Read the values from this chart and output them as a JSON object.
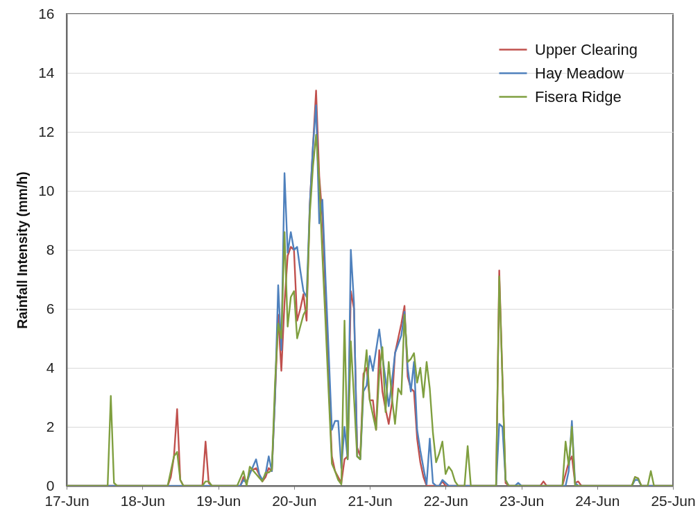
{
  "chart_data": {
    "type": "line",
    "ylabel": "Rainfall Intensity (mm/h)",
    "xlim": [
      "--06-17",
      "--06-25"
    ],
    "xticks": [
      {
        "value": "--06-17",
        "label": "17-Jun"
      },
      {
        "value": "--06-18",
        "label": "18-Jun"
      },
      {
        "value": "--06-19",
        "label": "19-Jun"
      },
      {
        "value": "--06-20",
        "label": "20-Jun"
      },
      {
        "value": "--06-21",
        "label": "21-Jun"
      },
      {
        "value": "--06-22",
        "label": "22-Jun"
      },
      {
        "value": "--06-23",
        "label": "23-Jun"
      },
      {
        "value": "--06-24",
        "label": "24-Jun"
      },
      {
        "value": "--06-25",
        "label": "25-Jun"
      }
    ],
    "ylim": [
      0,
      16
    ],
    "yticks": [
      0,
      2,
      4,
      6,
      8,
      10,
      12,
      14,
      16
    ],
    "grid": "y",
    "legend": "top right",
    "line_style": "solid",
    "series": [
      {
        "name": "Upper Clearing",
        "color": "#c0504d",
        "x": [
          "--06-17T00:00",
          "--06-18T08:00",
          "--06-18T09:00",
          "--06-18T10:00",
          "--06-18T11:00",
          "--06-18T12:00",
          "--06-18T13:00",
          "--06-18T19:00",
          "--06-18T20:00",
          "--06-18T21:00",
          "--06-18T22:00",
          "--06-19T07:00",
          "--06-19T08:00",
          "--06-19T09:00",
          "--06-19T10:00",
          "--06-19T12:00",
          "--06-19T14:00",
          "--06-19T15:00",
          "--06-19T16:00",
          "--06-19T17:00",
          "--06-19T18:00",
          "--06-19T19:00",
          "--06-19T20:00",
          "--06-19T21:00",
          "--06-19T22:00",
          "--06-19T23:00",
          "--06-20T00:00",
          "--06-20T01:00",
          "--06-20T02:00",
          "--06-20T03:00",
          "--06-20T04:00",
          "--06-20T05:00",
          "--06-20T06:00",
          "--06-20T07:00",
          "--06-20T08:00",
          "--06-20T09:00",
          "--06-20T10:00",
          "--06-20T11:00",
          "--06-20T12:00",
          "--06-20T13:00",
          "--06-20T14:00",
          "--06-20T15:00",
          "--06-20T16:00",
          "--06-20T17:00",
          "--06-20T18:00",
          "--06-20T19:00",
          "--06-20T20:00",
          "--06-20T21:00",
          "--06-20T22:00",
          "--06-20T23:00",
          "--06-21T00:00",
          "--06-21T01:00",
          "--06-21T02:00",
          "--06-21T03:00",
          "--06-21T04:00",
          "--06-21T05:00",
          "--06-21T06:00",
          "--06-21T07:00",
          "--06-21T08:00",
          "--06-21T09:00",
          "--06-21T10:00",
          "--06-21T11:00",
          "--06-21T12:00",
          "--06-21T13:00",
          "--06-21T14:00",
          "--06-21T15:00",
          "--06-21T16:00",
          "--06-21T17:00",
          "--06-21T18:00",
          "--06-21T22:00",
          "--06-21T23:00",
          "--06-22T00:00",
          "--06-22T16:00",
          "--06-22T17:00",
          "--06-22T19:00",
          "--06-22T20:00",
          "--06-23T06:00",
          "--06-23T07:00",
          "--06-23T08:00",
          "--06-23T13:00",
          "--06-23T15:00",
          "--06-23T16:00",
          "--06-23T17:00",
          "--06-23T18:00",
          "--06-23T19:00",
          "--06-24T11:00",
          "--06-24T12:00",
          "--06-24T13:00",
          "--06-24T14:00",
          "--06-25T00:00"
        ],
        "values": [
          0,
          0,
          0.3,
          1.0,
          2.6,
          0.2,
          0,
          0,
          1.5,
          0.1,
          0,
          0,
          0.3,
          0.1,
          0.5,
          0.6,
          0.15,
          0.3,
          0.6,
          0.5,
          3.0,
          5.8,
          3.9,
          6.2,
          7.8,
          8.1,
          8.0,
          5.6,
          6.0,
          6.5,
          5.6,
          9.5,
          11.5,
          13.4,
          10.5,
          9.1,
          6.5,
          3.5,
          1.0,
          0.5,
          0.3,
          0.1,
          0.9,
          1.0,
          6.6,
          6.0,
          1.3,
          1.0,
          3.8,
          4.0,
          2.9,
          2.9,
          1.9,
          4.6,
          3.2,
          2.6,
          2.1,
          2.8,
          4.5,
          5.0,
          5.5,
          6.1,
          3.7,
          3.3,
          3.2,
          1.6,
          0.8,
          0.3,
          0,
          0,
          0.15,
          0,
          0,
          7.3,
          0.1,
          0,
          0,
          0.15,
          0,
          0,
          0.8,
          1.0,
          0.1,
          0.15,
          0,
          0,
          0.3,
          0.25,
          0,
          0
        ]
      },
      {
        "name": "Hay Meadow",
        "color": "#4f81bd",
        "x": [
          "--06-17T00:00",
          "--06-19T07:00",
          "--06-19T08:00",
          "--06-19T09:00",
          "--06-19T10:00",
          "--06-19T12:00",
          "--06-19T13:00",
          "--06-19T14:00",
          "--06-19T15:00",
          "--06-19T16:00",
          "--06-19T17:00",
          "--06-19T18:00",
          "--06-19T19:00",
          "--06-19T20:00",
          "--06-19T21:00",
          "--06-19T22:00",
          "--06-19T23:00",
          "--06-20T00:00",
          "--06-20T01:00",
          "--06-20T02:00",
          "--06-20T03:00",
          "--06-20T04:00",
          "--06-20T05:00",
          "--06-20T06:00",
          "--06-20T07:00",
          "--06-20T08:00",
          "--06-20T09:00",
          "--06-20T10:00",
          "--06-20T11:00",
          "--06-20T12:00",
          "--06-20T13:00",
          "--06-20T14:00",
          "--06-20T15:00",
          "--06-20T16:00",
          "--06-20T17:00",
          "--06-20T18:00",
          "--06-20T19:00",
          "--06-20T20:00",
          "--06-20T21:00",
          "--06-20T22:00",
          "--06-20T23:00",
          "--06-21T00:00",
          "--06-21T01:00",
          "--06-21T02:00",
          "--06-21T03:00",
          "--06-21T04:00",
          "--06-21T05:00",
          "--06-21T06:00",
          "--06-21T07:00",
          "--06-21T08:00",
          "--06-21T09:00",
          "--06-21T10:00",
          "--06-21T11:00",
          "--06-21T12:00",
          "--06-21T13:00",
          "--06-21T14:00",
          "--06-21T15:00",
          "--06-21T16:00",
          "--06-21T17:00",
          "--06-21T18:00",
          "--06-21T19:00",
          "--06-21T20:00",
          "--06-21T21:00",
          "--06-21T22:00",
          "--06-21T23:00",
          "--06-22T00:00",
          "--06-22T01:00",
          "--06-22T16:00",
          "--06-22T17:00",
          "--06-22T18:00",
          "--06-22T19:00",
          "--06-22T20:00",
          "--06-22T22:00",
          "--06-22T23:00",
          "--06-23T00:00",
          "--06-23T14:00",
          "--06-23T15:00",
          "--06-23T16:00",
          "--06-23T17:00",
          "--06-23T18:00",
          "--06-24T11:00",
          "--06-24T12:00",
          "--06-24T13:00",
          "--06-24T14:00",
          "--06-25T00:00"
        ],
        "values": [
          0,
          0,
          0.2,
          0.1,
          0.4,
          0.9,
          0.4,
          0.2,
          0.4,
          1.0,
          0.5,
          3.0,
          6.8,
          4.6,
          10.6,
          7.9,
          8.6,
          8.0,
          8.1,
          7.3,
          6.6,
          6.4,
          9.5,
          11.5,
          12.9,
          8.9,
          9.7,
          7.0,
          4.5,
          1.9,
          2.2,
          2.2,
          0.6,
          2.0,
          0.9,
          8.0,
          6.2,
          1.0,
          0.9,
          3.2,
          3.4,
          4.4,
          3.9,
          4.6,
          5.3,
          4.4,
          3.6,
          2.7,
          3.5,
          4.5,
          4.8,
          5.1,
          5.9,
          4.0,
          3.2,
          4.2,
          1.9,
          1.2,
          0.6,
          0.05,
          1.6,
          0.1,
          0,
          0,
          0.2,
          0.1,
          0,
          0,
          2.1,
          2.0,
          0.2,
          0,
          0,
          0.1,
          0,
          0,
          0.5,
          2.2,
          0.1,
          0,
          0,
          0.2,
          0.2,
          0,
          0
        ]
      },
      {
        "name": "Fisera Ridge",
        "color": "#7f9f3f",
        "x": [
          "--06-17T00:00",
          "--06-17T13:00",
          "--06-17T14:00",
          "--06-17T15:00",
          "--06-17T16:00",
          "--06-18T08:00",
          "--06-18T09:00",
          "--06-18T10:00",
          "--06-18T11:00",
          "--06-18T12:00",
          "--06-18T13:00",
          "--06-18T19:00",
          "--06-18T20:00",
          "--06-18T21:00",
          "--06-18T22:00",
          "--06-19T06:00",
          "--06-19T08:00",
          "--06-19T09:00",
          "--06-19T10:00",
          "--06-19T12:00",
          "--06-19T14:00",
          "--06-19T15:00",
          "--06-19T16:00",
          "--06-19T17:00",
          "--06-19T18:00",
          "--06-19T19:00",
          "--06-19T20:00",
          "--06-19T21:00",
          "--06-19T22:00",
          "--06-19T23:00",
          "--06-20T00:00",
          "--06-20T01:00",
          "--06-20T02:00",
          "--06-20T03:00",
          "--06-20T04:00",
          "--06-20T05:00",
          "--06-20T06:00",
          "--06-20T07:00",
          "--06-20T08:00",
          "--06-20T09:00",
          "--06-20T10:00",
          "--06-20T11:00",
          "--06-20T12:00",
          "--06-20T13:00",
          "--06-20T14:00",
          "--06-20T15:00",
          "--06-20T16:00",
          "--06-20T17:00",
          "--06-20T18:00",
          "--06-20T19:00",
          "--06-20T20:00",
          "--06-20T21:00",
          "--06-20T22:00",
          "--06-20T23:00",
          "--06-21T00:00",
          "--06-21T01:00",
          "--06-21T02:00",
          "--06-21T03:00",
          "--06-21T04:00",
          "--06-21T05:00",
          "--06-21T06:00",
          "--06-21T07:00",
          "--06-21T08:00",
          "--06-21T09:00",
          "--06-21T10:00",
          "--06-21T11:00",
          "--06-21T12:00",
          "--06-21T13:00",
          "--06-21T14:00",
          "--06-21T15:00",
          "--06-21T16:00",
          "--06-21T17:00",
          "--06-21T18:00",
          "--06-21T19:00",
          "--06-21T20:00",
          "--06-21T21:00",
          "--06-21T22:00",
          "--06-21T23:00",
          "--06-22T00:00",
          "--06-22T01:00",
          "--06-22T02:00",
          "--06-22T03:00",
          "--06-22T04:00",
          "--06-22T06:00",
          "--06-22T07:00",
          "--06-22T08:00",
          "--06-22T16:00",
          "--06-22T17:00",
          "--06-22T19:00",
          "--06-22T20:00",
          "--06-23T13:00",
          "--06-23T14:00",
          "--06-23T15:00",
          "--06-23T16:00",
          "--06-23T17:00",
          "--06-24T11:00",
          "--06-24T12:00",
          "--06-24T13:00",
          "--06-24T14:00",
          "--06-24T16:00",
          "--06-24T17:00",
          "--06-24T18:00",
          "--06-25T00:00"
        ],
        "values": [
          0,
          0,
          3.05,
          0.1,
          0,
          0,
          0.5,
          1.0,
          1.15,
          0.2,
          0,
          0,
          0.15,
          0.15,
          0,
          0,
          0.5,
          0,
          0.65,
          0.4,
          0.15,
          0.45,
          0.45,
          0.55,
          3.5,
          5.5,
          5.0,
          8.6,
          5.4,
          6.4,
          6.6,
          5.0,
          5.4,
          5.8,
          6.0,
          9.2,
          10.8,
          11.9,
          10.3,
          7.8,
          5.5,
          3.1,
          0.75,
          0.5,
          0.2,
          0.05,
          5.6,
          0.9,
          4.9,
          3.0,
          1.0,
          0.9,
          3.5,
          4.6,
          2.9,
          2.4,
          1.9,
          3.8,
          4.7,
          2.5,
          4.2,
          3.0,
          2.1,
          3.3,
          3.1,
          5.8,
          4.2,
          4.3,
          4.5,
          3.5,
          4.0,
          3.0,
          4.2,
          3.3,
          1.8,
          0.8,
          1.1,
          1.5,
          0.4,
          0.65,
          0.5,
          0.15,
          0,
          0,
          1.35,
          0,
          0,
          7.1,
          0.2,
          0,
          0,
          1.5,
          0.7,
          2.0,
          0,
          0,
          0.3,
          0.25,
          0,
          0,
          0.5,
          0,
          0
        ]
      }
    ]
  }
}
